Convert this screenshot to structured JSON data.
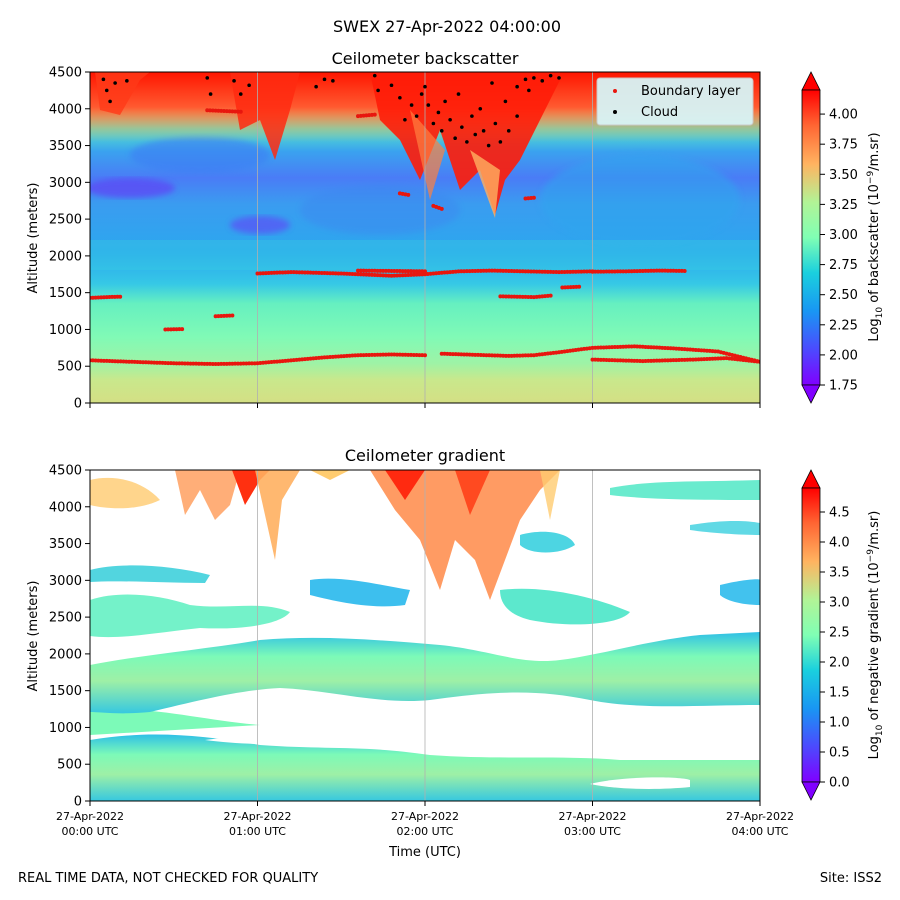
{
  "suptitle": "SWEX 27-Apr-2022 04:00:00",
  "footer_left": "REAL TIME DATA, NOT CHECKED FOR QUALITY",
  "footer_right": "Site: ISS2",
  "colors": {
    "boundary_layer": "#e8160e",
    "cloud": "#000000",
    "legend_bg": "#d8f4f6",
    "grid": "#b0b0b0"
  },
  "chart_data": [
    {
      "type": "heatmap",
      "title": "Ceilometer backscatter",
      "ylabel": "Altitude (meters)",
      "ylim": [
        0,
        4500
      ],
      "yticks": [
        "0",
        "500",
        "1000",
        "1500",
        "2000",
        "2500",
        "3000",
        "3500",
        "4000",
        "4500"
      ],
      "xlim_hours": [
        0,
        4
      ],
      "grid": "vertical at hourly ticks",
      "colorbar": {
        "label_prefix": "Log",
        "label_sub": "10",
        "label_rest": " of backscatter (10",
        "label_sup": "−9",
        "label_end": "/m.sr)",
        "range": [
          1.75,
          4.2
        ],
        "ticks": [
          "1.75",
          "2.00",
          "2.25",
          "2.50",
          "2.75",
          "3.00",
          "3.25",
          "3.50",
          "3.75",
          "4.00"
        ],
        "extend": "both",
        "colormap": "rainbow"
      },
      "legend": {
        "placement": "upper right",
        "entries": [
          {
            "name": "Boundary layer",
            "color": "#e8160e"
          },
          {
            "name": "Cloud",
            "color": "#000000"
          }
        ]
      },
      "series": [
        {
          "name": "Boundary layer",
          "kind": "scatter",
          "segments": [
            [
              [
                0.0,
                1430
              ],
              [
                0.1,
                1440
              ],
              [
                0.18,
                1445
              ]
            ],
            [
              [
                0.45,
                1000
              ],
              [
                0.55,
                1005
              ]
            ],
            [
              [
                0.75,
                1180
              ],
              [
                0.85,
                1190
              ]
            ],
            [
              [
                1.0,
                1760
              ],
              [
                1.2,
                1780
              ],
              [
                1.5,
                1760
              ],
              [
                1.8,
                1730
              ],
              [
                2.0,
                1750
              ],
              [
                2.2,
                1790
              ],
              [
                2.4,
                1800
              ],
              [
                2.6,
                1790
              ],
              [
                2.8,
                1780
              ],
              [
                3.0,
                1790
              ]
            ],
            [
              [
                3.0,
                1785
              ],
              [
                3.2,
                1790
              ],
              [
                3.4,
                1800
              ],
              [
                3.55,
                1795
              ]
            ],
            [
              [
                1.6,
                1800
              ],
              [
                1.8,
                1795
              ],
              [
                2.0,
                1790
              ]
            ],
            [
              [
                2.45,
                1450
              ],
              [
                2.65,
                1440
              ],
              [
                2.75,
                1460
              ]
            ],
            [
              [
                2.82,
                1570
              ],
              [
                2.92,
                1580
              ]
            ],
            [
              [
                0.0,
                580
              ],
              [
                0.25,
                560
              ],
              [
                0.5,
                540
              ],
              [
                0.75,
                530
              ],
              [
                1.0,
                540
              ],
              [
                1.2,
                580
              ],
              [
                1.4,
                620
              ],
              [
                1.6,
                650
              ],
              [
                1.8,
                660
              ],
              [
                2.0,
                650
              ]
            ],
            [
              [
                2.1,
                670
              ],
              [
                2.3,
                655
              ],
              [
                2.5,
                640
              ],
              [
                2.65,
                650
              ],
              [
                2.8,
                690
              ],
              [
                3.0,
                750
              ],
              [
                3.25,
                770
              ],
              [
                3.5,
                740
              ],
              [
                3.75,
                700
              ],
              [
                4.0,
                560
              ]
            ],
            [
              [
                3.0,
                590
              ],
              [
                3.3,
                570
              ],
              [
                3.6,
                590
              ],
              [
                3.8,
                610
              ],
              [
                4.0,
                560
              ]
            ],
            [
              [
                2.6,
                2780
              ],
              [
                2.65,
                2790
              ]
            ],
            [
              [
                1.6,
                3900
              ],
              [
                1.7,
                3920
              ]
            ],
            [
              [
                0.7,
                3980
              ],
              [
                0.9,
                3960
              ]
            ],
            [
              [
                1.85,
                2850
              ],
              [
                1.9,
                2830
              ]
            ],
            [
              [
                2.05,
                2680
              ],
              [
                2.1,
                2640
              ]
            ]
          ]
        },
        {
          "name": "Cloud",
          "kind": "scatter",
          "points": [
            [
              0.08,
              4400
            ],
            [
              0.1,
              4250
            ],
            [
              0.12,
              4100
            ],
            [
              0.15,
              4350
            ],
            [
              0.22,
              4380
            ],
            [
              0.7,
              4420
            ],
            [
              0.72,
              4200
            ],
            [
              0.86,
              4380
            ],
            [
              0.9,
              4200
            ],
            [
              0.95,
              4320
            ],
            [
              1.35,
              4300
            ],
            [
              1.4,
              4400
            ],
            [
              1.45,
              4380
            ],
            [
              1.7,
              4450
            ],
            [
              1.72,
              4250
            ],
            [
              1.8,
              4320
            ],
            [
              1.85,
              4150
            ],
            [
              1.88,
              3850
            ],
            [
              1.92,
              4050
            ],
            [
              1.95,
              3900
            ],
            [
              1.98,
              4200
            ],
            [
              2.0,
              4300
            ],
            [
              2.02,
              4050
            ],
            [
              2.05,
              3800
            ],
            [
              2.08,
              3950
            ],
            [
              2.1,
              3700
            ],
            [
              2.12,
              4100
            ],
            [
              2.15,
              3850
            ],
            [
              2.18,
              3600
            ],
            [
              2.22,
              3750
            ],
            [
              2.25,
              3550
            ],
            [
              2.28,
              3900
            ],
            [
              2.3,
              3650
            ],
            [
              2.33,
              4000
            ],
            [
              2.35,
              3700
            ],
            [
              2.38,
              3500
            ],
            [
              2.42,
              3800
            ],
            [
              2.45,
              3550
            ],
            [
              2.48,
              4100
            ],
            [
              2.5,
              3700
            ],
            [
              2.55,
              4300
            ],
            [
              2.6,
              4400
            ],
            [
              2.62,
              4250
            ],
            [
              2.65,
              4420
            ],
            [
              2.7,
              4380
            ],
            [
              2.75,
              4450
            ],
            [
              2.8,
              4420
            ],
            [
              2.55,
              3900
            ],
            [
              2.2,
              4200
            ],
            [
              2.4,
              4350
            ]
          ]
        }
      ]
    },
    {
      "type": "heatmap",
      "title": "Ceilometer gradient",
      "ylabel": "Altitude (meters)",
      "xlabel": "Time (UTC)",
      "ylim": [
        0,
        4500
      ],
      "yticks": [
        "0",
        "500",
        "1000",
        "1500",
        "2000",
        "2500",
        "3000",
        "3500",
        "4000",
        "4500"
      ],
      "xlim_hours": [
        0,
        4
      ],
      "xticks": [
        {
          "date": "27-Apr-2022",
          "time": "00:00 UTC"
        },
        {
          "date": "27-Apr-2022",
          "time": "01:00 UTC"
        },
        {
          "date": "27-Apr-2022",
          "time": "02:00 UTC"
        },
        {
          "date": "27-Apr-2022",
          "time": "03:00 UTC"
        },
        {
          "date": "27-Apr-2022",
          "time": "04:00 UTC"
        }
      ],
      "grid": "vertical at hourly ticks",
      "colorbar": {
        "label_prefix": "Log",
        "label_sub": "10",
        "label_rest": " of negative gradient (10",
        "label_sup": "−9",
        "label_end": "/m.sr)",
        "range": [
          0,
          4.9
        ],
        "ticks": [
          "0.0",
          "0.5",
          "1.0",
          "1.5",
          "2.0",
          "2.5",
          "3.0",
          "3.5",
          "4.0",
          "4.5"
        ],
        "extend": "both",
        "colormap": "rainbow"
      }
    }
  ]
}
